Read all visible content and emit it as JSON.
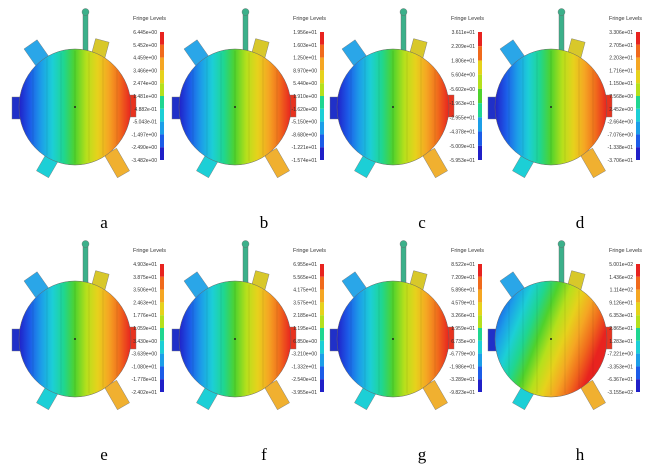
{
  "panels": [
    {
      "label": "a",
      "legend_title": "Fringe Levels",
      "legend_values": [
        "6.445e+00",
        "5.452e+00",
        "4.459e+00",
        "3.466e+00",
        "2.474e+00",
        "1.481e+00",
        "4.882e-01",
        "-5.043e-01",
        "-1.497e+00",
        "-2.490e+00",
        "-3.482e+00"
      ]
    },
    {
      "label": "b",
      "legend_title": "Fringe Levels",
      "legend_values": [
        "1.956e+01",
        "1.603e+01",
        "1.250e+01",
        "8.970e+00",
        "5.440e+00",
        "1.910e+00",
        "-1.620e+00",
        "-5.150e+00",
        "-8.680e+00",
        "-1.221e+01",
        "-1.574e+01"
      ]
    },
    {
      "label": "c",
      "legend_title": "Fringe Levels",
      "legend_values": [
        "3.611e+01",
        "2.209e+01",
        "1.806e+01",
        "5.604e+00",
        "-5.602e+00",
        "-1.963e+01",
        "-2.955e+01",
        "-4.378e+01",
        "-5.009e+01",
        "-5.953e+01"
      ]
    },
    {
      "label": "d",
      "legend_title": "Fringe Levels",
      "legend_values": [
        "3.306e+01",
        "2.705e+01",
        "2.203e+01",
        "1.716e+01",
        "1.150e+01",
        "7.568e+00",
        "2.452e+00",
        "-2.664e+00",
        "-7.076e+00",
        "-1.338e+01",
        "-3.706e+01"
      ]
    },
    {
      "label": "e",
      "legend_title": "Fringe Levels",
      "legend_values": [
        "4.903e+01",
        "3.875e+01",
        "3.506e+01",
        "2.463e+01",
        "1.776e+01",
        "1.059e+01",
        "3.430e+00",
        "-3.639e+00",
        "-1.080e+01",
        "-1.778e+01",
        "-2.402e+01"
      ]
    },
    {
      "label": "f",
      "legend_title": "Fringe Levels",
      "legend_values": [
        "6.955e+01",
        "5.565e+01",
        "4.175e+01",
        "3.575e+01",
        "2.185e+01",
        "1.195e+01",
        "6.850e+00",
        "-3.210e+00",
        "-1.332e+01",
        "-2.540e+01",
        "-3.955e+01"
      ]
    },
    {
      "label": "g",
      "legend_title": "Fringe Levels",
      "legend_values": [
        "8.522e+01",
        "7.209e+01",
        "5.896e+01",
        "4.579e+01",
        "3.266e+01",
        "1.959e+01",
        "6.735e+00",
        "-6.779e+00",
        "-1.986e+01",
        "-3.289e+01",
        "-9.823e+01"
      ]
    },
    {
      "label": "h",
      "legend_title": "Fringe Levels",
      "legend_values": [
        "5.001e+02",
        "1.436e+02",
        "1.114e+02",
        "9.126e+01",
        "6.353e+01",
        "2.865e+01",
        "1.283e+01",
        "-7.221e+00",
        "-3.353e+01",
        "-6.367e+01",
        "-3.155e+02"
      ]
    }
  ]
}
